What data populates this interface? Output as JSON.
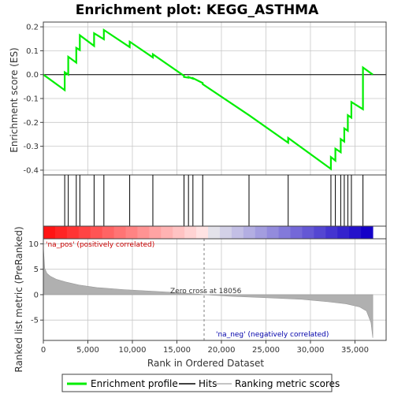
{
  "chart_data": {
    "type": "line",
    "title": "Enrichment plot: KEGG_ASTHMA",
    "xlabel": "Rank in Ordered Dataset",
    "es_ylabel": "Enrichment score (ES)",
    "metric_ylabel": "Ranked list metric (PreRanked)",
    "xlim": [
      0,
      38500
    ],
    "es_ylim": [
      -0.42,
      0.22
    ],
    "metric_ylim": [
      -9,
      11
    ],
    "x_ticks": [
      0,
      5000,
      10000,
      15000,
      20000,
      25000,
      30000,
      35000
    ],
    "x_tick_labels": [
      "0",
      "5,000",
      "10,000",
      "15,000",
      "20,000",
      "25,000",
      "30,000",
      "35,000"
    ],
    "es_ticks": [
      0.2,
      0.1,
      0.0,
      -0.1,
      -0.2,
      -0.3,
      -0.4
    ],
    "es_tick_labels": [
      "0.2",
      "0.1",
      "0.0",
      "-0.1",
      "-0.2",
      "-0.3",
      "-0.4"
    ],
    "metric_ticks": [
      10,
      5,
      0,
      -5
    ],
    "metric_tick_labels": [
      "10",
      "5",
      "0",
      "-5"
    ],
    "n_genes": 37000,
    "hits": [
      2400,
      2800,
      3700,
      4100,
      5700,
      6800,
      9700,
      12300,
      15800,
      16300,
      16800,
      17900,
      23100,
      27500,
      32300,
      32800,
      33400,
      33800,
      34200,
      34600,
      35900
    ],
    "es_profile": {
      "x": [
        0,
        2400,
        2400,
        2800,
        2800,
        3700,
        3700,
        4100,
        4100,
        5700,
        5700,
        6800,
        6800,
        9700,
        9700,
        12300,
        12300,
        15800,
        15800,
        16300,
        16300,
        16800,
        16800,
        17900,
        17900,
        23100,
        23100,
        27500,
        27500,
        32300,
        32300,
        32800,
        32800,
        33400,
        33400,
        33800,
        33800,
        34200,
        34200,
        34600,
        34600,
        35900,
        35900,
        37000
      ],
      "y": [
        0.0,
        -0.065,
        0.01,
        0.0,
        0.075,
        0.05,
        0.112,
        0.103,
        0.165,
        0.12,
        0.173,
        0.148,
        0.187,
        0.115,
        0.138,
        0.072,
        0.085,
        -0.005,
        -0.01,
        -0.013,
        -0.01,
        -0.017,
        -0.015,
        -0.035,
        -0.04,
        -0.17,
        -0.17,
        -0.285,
        -0.265,
        -0.395,
        -0.345,
        -0.36,
        -0.31,
        -0.325,
        -0.27,
        -0.28,
        -0.225,
        -0.235,
        -0.17,
        -0.18,
        -0.115,
        -0.145,
        0.03,
        0.0
      ]
    },
    "metric_profile": {
      "x": [
        0,
        150,
        400,
        800,
        1500,
        2500,
        4000,
        6000,
        9000,
        13000,
        16000,
        18056,
        21000,
        25000,
        29000,
        32000,
        34000,
        35500,
        36300,
        36800,
        37000
      ],
      "y": [
        9.5,
        5.2,
        4.2,
        3.6,
        3.0,
        2.5,
        1.9,
        1.4,
        1.0,
        0.6,
        0.3,
        0.0,
        -0.3,
        -0.6,
        -0.9,
        -1.4,
        -1.8,
        -2.4,
        -3.2,
        -5.5,
        -8.5
      ]
    },
    "zero_cross": 18056,
    "annotations": {
      "pos": "'na_pos' (positively correlated)",
      "neg": "'na_neg' (negatively correlated)",
      "zero": "Zero cross at 18056"
    },
    "legend": [
      "Enrichment profile",
      "Hits",
      "Ranking metric scores"
    ],
    "colors": {
      "es_line": "#00ee00",
      "hits": "#000000",
      "metric_fill": "#b0b0b0",
      "zero_line": "#808080",
      "grid": "#c8c8c8",
      "frame": "#404040"
    },
    "grid": true,
    "legend_position": "bottom"
  }
}
